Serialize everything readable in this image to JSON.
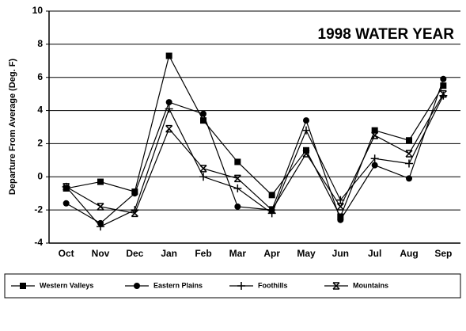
{
  "chart_data": {
    "type": "line",
    "title": "1998 WATER YEAR",
    "y_label": "Departure From Average (Deg. F)",
    "categories": [
      "Oct",
      "Nov",
      "Dec",
      "Jan",
      "Feb",
      "Mar",
      "Apr",
      "May",
      "Jun",
      "Jul",
      "Aug",
      "Sep"
    ],
    "series": [
      {
        "name": "Western Valleys",
        "color": "#000000",
        "marker": "square",
        "values": [
          -0.7,
          -0.3,
          -0.9,
          7.3,
          3.4,
          0.9,
          -1.1,
          1.6,
          -2.4,
          2.8,
          2.2,
          5.5
        ]
      },
      {
        "name": "Eastern Plains",
        "color": "#000000",
        "marker": "circle",
        "values": [
          -1.6,
          -2.8,
          -1.0,
          4.5,
          3.8,
          -1.8,
          -2.0,
          3.4,
          -2.6,
          0.7,
          -0.1,
          5.9
        ]
      },
      {
        "name": "Foothills",
        "color": "#000000",
        "marker": "plus",
        "values": [
          -0.6,
          -3.0,
          -2.0,
          4.1,
          0.0,
          -0.7,
          -2.2,
          2.8,
          -1.4,
          1.1,
          0.8,
          4.9
        ]
      },
      {
        "name": "Mountains",
        "color": "#000000",
        "marker": "xbar",
        "values": [
          -0.6,
          -1.8,
          -2.2,
          2.9,
          0.5,
          -0.1,
          -2.0,
          1.4,
          -1.8,
          2.5,
          1.4,
          5.0
        ]
      }
    ],
    "ylim": [
      -4,
      10
    ],
    "yticks": [
      -4,
      -2,
      0,
      2,
      4,
      6,
      8,
      10
    ],
    "grid": true,
    "legend": "bottom"
  }
}
